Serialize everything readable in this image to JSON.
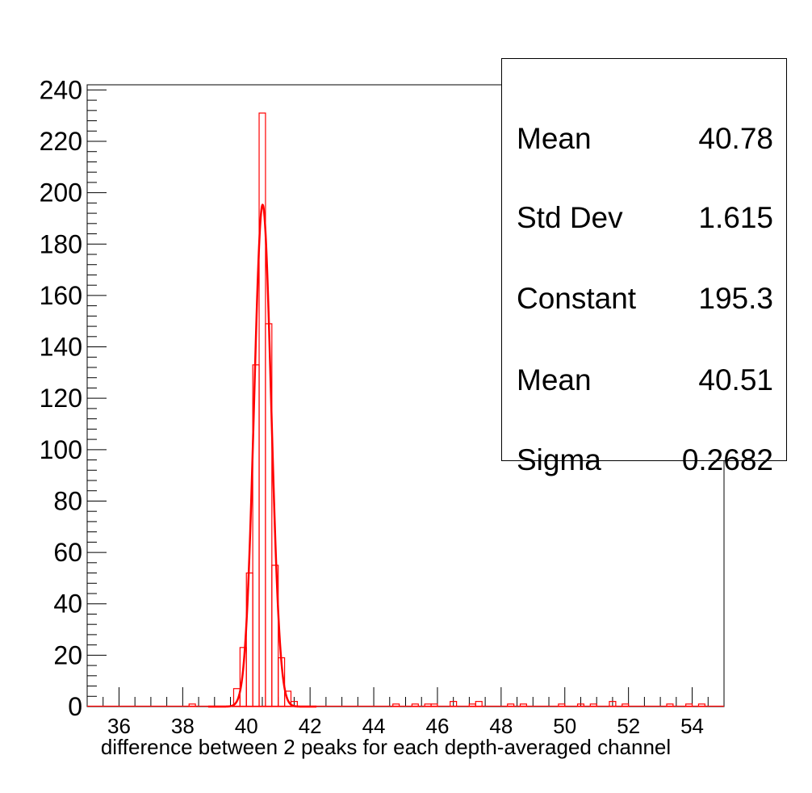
{
  "chart_data": {
    "type": "bar",
    "title": "",
    "xlabel": "difference between 2 peaks for each depth-averaged channel",
    "ylabel": "",
    "xlim": [
      35,
      55
    ],
    "ylim": [
      0,
      242
    ],
    "x_ticks": [
      36,
      38,
      40,
      42,
      44,
      46,
      48,
      50,
      52,
      54
    ],
    "y_ticks": [
      0,
      20,
      40,
      60,
      80,
      100,
      120,
      140,
      160,
      180,
      200,
      220,
      240
    ],
    "bin_width": 0.2,
    "histogram": {
      "name": "",
      "color": "#ff0000",
      "bins": [
        {
          "x": 38.2,
          "count": 1
        },
        {
          "x": 39.6,
          "count": 7
        },
        {
          "x": 39.8,
          "count": 23
        },
        {
          "x": 40.0,
          "count": 52
        },
        {
          "x": 40.2,
          "count": 133
        },
        {
          "x": 40.4,
          "count": 231
        },
        {
          "x": 40.6,
          "count": 149
        },
        {
          "x": 40.8,
          "count": 55
        },
        {
          "x": 41.0,
          "count": 19
        },
        {
          "x": 41.2,
          "count": 6
        },
        {
          "x": 41.4,
          "count": 2
        },
        {
          "x": 44.6,
          "count": 1
        },
        {
          "x": 45.2,
          "count": 1
        },
        {
          "x": 45.6,
          "count": 1
        },
        {
          "x": 45.8,
          "count": 1
        },
        {
          "x": 46.4,
          "count": 2
        },
        {
          "x": 47.0,
          "count": 1
        },
        {
          "x": 47.2,
          "count": 2
        },
        {
          "x": 48.2,
          "count": 1
        },
        {
          "x": 48.6,
          "count": 1
        },
        {
          "x": 49.8,
          "count": 1
        },
        {
          "x": 50.4,
          "count": 1
        },
        {
          "x": 50.8,
          "count": 1
        },
        {
          "x": 51.4,
          "count": 2
        },
        {
          "x": 51.8,
          "count": 1
        },
        {
          "x": 53.2,
          "count": 1
        },
        {
          "x": 53.8,
          "count": 1
        },
        {
          "x": 54.2,
          "count": 1
        }
      ]
    },
    "fit": {
      "type": "gaussian",
      "color": "#ff0000",
      "constant": 195.3,
      "mean": 40.51,
      "sigma": 0.2682
    }
  },
  "stats": [
    {
      "label": "Mean",
      "value": "40.78"
    },
    {
      "label": "Std Dev",
      "value": "1.615"
    },
    {
      "label": "Constant",
      "value": "195.3"
    },
    {
      "label": "Mean",
      "value": "40.51"
    },
    {
      "label": "Sigma",
      "value": "0.2682"
    }
  ]
}
